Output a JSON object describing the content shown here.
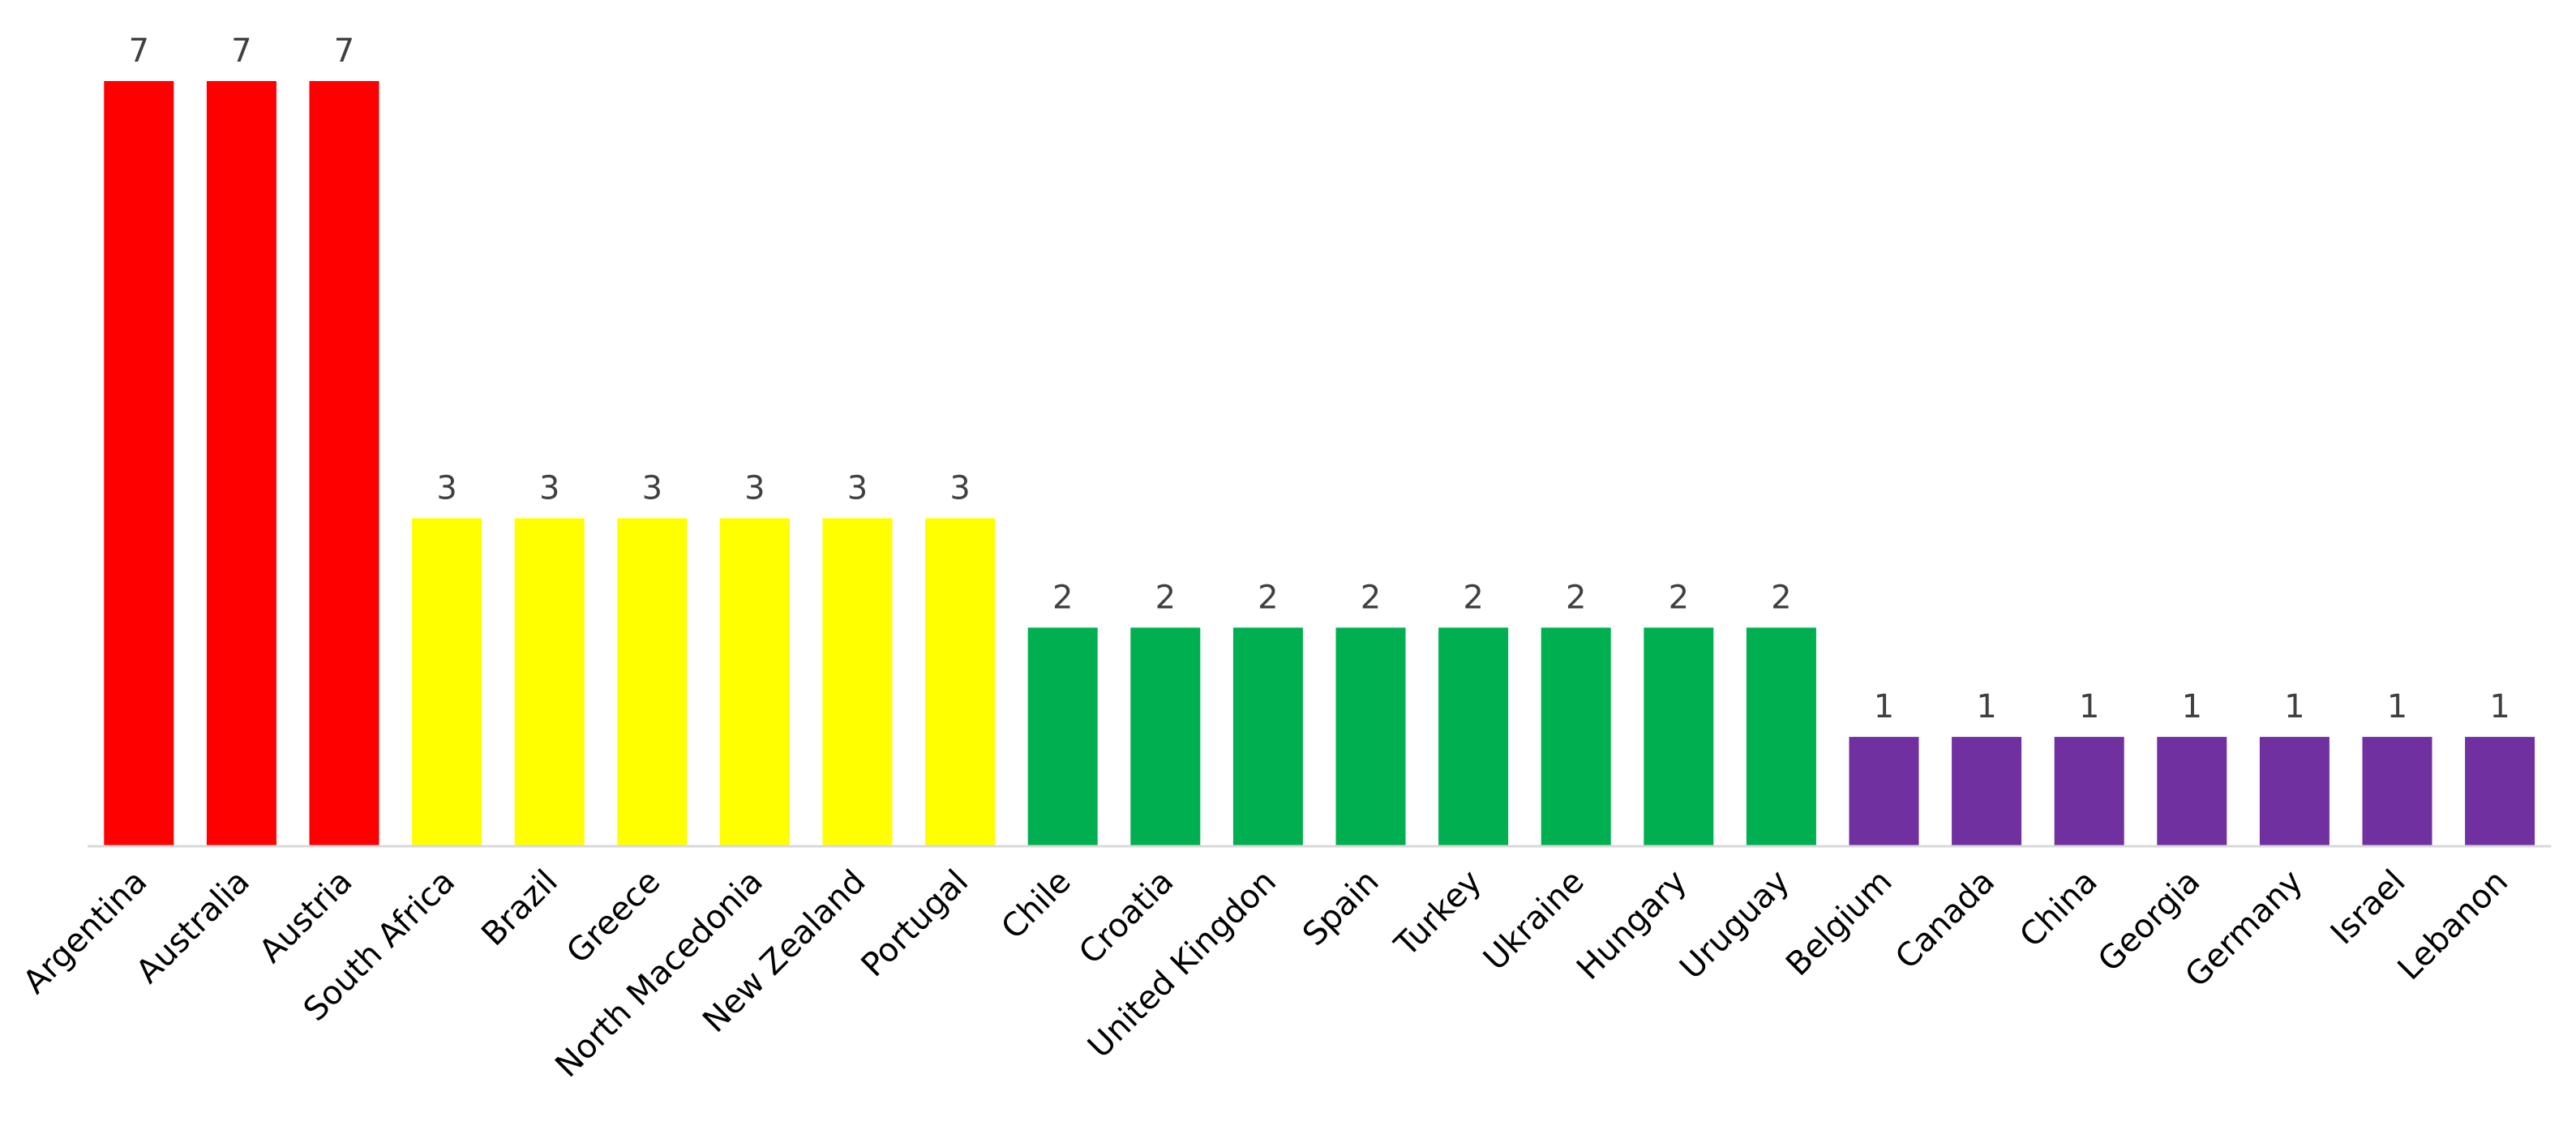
{
  "chart_data": {
    "type": "bar",
    "title": "",
    "xlabel": "",
    "ylabel": "",
    "ylim": [
      0,
      7
    ],
    "grid": false,
    "legend": "none",
    "categories": [
      "Argentina",
      "Australia",
      "Austria",
      "South Africa",
      "Brazil",
      "Greece",
      "North Macedonia",
      "New Zealand",
      "Portugal",
      "Chile",
      "Croatia",
      "United Kingdon",
      "Spain",
      "Turkey",
      "Ukraine",
      "Hungary",
      "Uruguay",
      "Belgium",
      "Canada",
      "China",
      "Georgia",
      "Germany",
      "Israel",
      "Lebanon"
    ],
    "values": [
      7,
      7,
      7,
      3,
      3,
      3,
      3,
      3,
      3,
      2,
      2,
      2,
      2,
      2,
      2,
      2,
      2,
      1,
      1,
      1,
      1,
      1,
      1,
      1
    ],
    "value_labels": [
      "7",
      "7",
      "7",
      "3",
      "3",
      "3",
      "3",
      "3",
      "3",
      "2",
      "2",
      "2",
      "2",
      "2",
      "2",
      "2",
      "2",
      "1",
      "1",
      "1",
      "1",
      "1",
      "1",
      "1"
    ],
    "colors_by_value": {
      "7": "#FF0000",
      "3": "#FFFF00",
      "2": "#00B050",
      "1": "#7030A0"
    },
    "axis_color": "#D9D9D9"
  }
}
